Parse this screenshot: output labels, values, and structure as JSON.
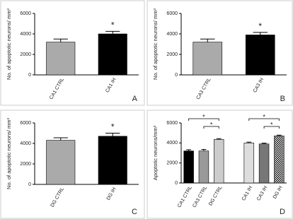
{
  "chart_data": [
    {
      "type": "bar",
      "y_label": "No. of apoptotic neurons/ mm³",
      "categories": [
        "CA1 CTRL",
        "CA1 IH"
      ],
      "values": [
        3200,
        4000
      ],
      "errors": [
        300,
        250
      ],
      "colors": [
        "#aaaaaa",
        "#000000"
      ],
      "ylim": [
        0,
        6000
      ],
      "yticks": [
        0,
        2000,
        4000,
        6000
      ],
      "annotation": "*",
      "panel_label": "A"
    },
    {
      "type": "bar",
      "y_label": "No. of apoptotic neurons/ mm³",
      "categories": [
        "CA3 CTRL",
        "CA3 IH"
      ],
      "values": [
        3200,
        3900
      ],
      "errors": [
        300,
        250
      ],
      "colors": [
        "#aaaaaa",
        "#000000"
      ],
      "ylim": [
        0,
        6000
      ],
      "yticks": [
        0,
        2000,
        4000,
        6000
      ],
      "annotation": "*",
      "panel_label": "B"
    },
    {
      "type": "bar",
      "y_label": "No. of apoptotic neurons/ mm³",
      "categories": [
        "DG CTRL",
        "DG IH"
      ],
      "values": [
        4300,
        4700
      ],
      "errors": [
        250,
        300
      ],
      "colors": [
        "#aaaaaa",
        "#000000"
      ],
      "ylim": [
        0,
        6000
      ],
      "yticks": [
        0,
        2000,
        4000,
        6000
      ],
      "annotation": "*",
      "panel_label": "C"
    },
    {
      "type": "bar",
      "y_label": "Apoptotic neurons/mm³",
      "categories": [
        "CA1 CTRL",
        "CA3 CTRL",
        "DG CTRL",
        null,
        "CA1 IH",
        "CA3 IH",
        "DG IH"
      ],
      "values": [
        3200,
        3200,
        4350,
        null,
        4000,
        3900,
        4700
      ],
      "errors": [
        120,
        150,
        80,
        null,
        80,
        80,
        80
      ],
      "colors": [
        "#000000",
        "#999999",
        "#cccccc",
        null,
        "#dddddd",
        "#777777",
        "checkered"
      ],
      "ylim": [
        0,
        6000
      ],
      "yticks": [
        0,
        2000,
        4000,
        6000
      ],
      "brackets": [
        {
          "from": "CA1 CTRL",
          "to": "DG CTRL",
          "label": "*"
        },
        {
          "from": "CA3 CTRL",
          "to": "DG CTRL",
          "label": "*"
        },
        {
          "from": "CA1 IH",
          "to": "DG IH",
          "label": "*"
        },
        {
          "from": "CA3 IH",
          "to": "DG IH",
          "label": "*"
        }
      ],
      "panel_label": "D"
    }
  ]
}
